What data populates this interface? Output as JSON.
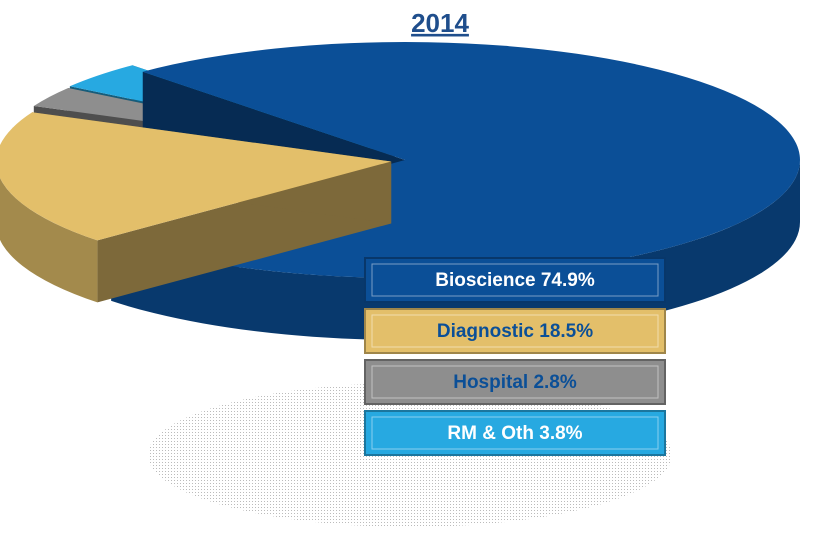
{
  "chart_data": {
    "type": "pie",
    "title": "2014",
    "categories": [
      "Bioscience",
      "Diagnostic",
      "Hospital",
      "RM & Oth"
    ],
    "values": [
      74.9,
      18.5,
      2.8,
      3.8
    ],
    "value_labels": [
      "74.9%",
      "18.5%",
      "2.8%",
      "3.8%"
    ],
    "colors": [
      "#0b4f97",
      "#e3bf6a",
      "#8e8e8e",
      "#27a9e1"
    ]
  }
}
